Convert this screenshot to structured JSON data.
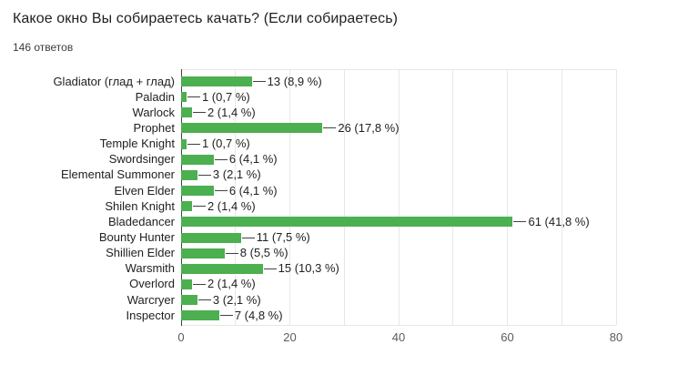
{
  "header": {
    "title": "Какое окно Вы собираетесь качать? (Если собираетесь)",
    "responses": "146 ответов"
  },
  "chart_data": {
    "type": "bar",
    "orientation": "horizontal",
    "title": "Какое окно Вы собираетесь качать? (Если собираетесь)",
    "responses_total": 146,
    "categories": [
      "Gladiator (глад + глад)",
      "Paladin",
      "Warlock",
      "Prophet",
      "Temple Knight",
      "Swordsinger",
      "Elemental Summoner",
      "Elven Elder",
      "Shilen Knight",
      "Bladedancer",
      "Bounty Hunter",
      "Shillien Elder",
      "Warsmith",
      "Overlord",
      "Warcryer",
      "Inspector"
    ],
    "values": [
      13,
      1,
      2,
      26,
      1,
      6,
      3,
      6,
      2,
      61,
      11,
      8,
      15,
      2,
      3,
      7
    ],
    "percents": [
      8.9,
      0.7,
      1.4,
      17.8,
      0.7,
      4.1,
      2.1,
      4.1,
      1.4,
      41.8,
      7.5,
      5.5,
      10.3,
      1.4,
      2.1,
      4.8
    ],
    "display_labels": [
      "13 (8,9 %)",
      "1 (0,7 %)",
      "2 (1,4 %)",
      "26 (17,8 %)",
      "1 (0,7 %)",
      "6 (4,1 %)",
      "3 (2,1 %)",
      "6 (4,1 %)",
      "2 (1,4 %)",
      "61 (41,8 %)",
      "11 (7,5 %)",
      "8 (5,5 %)",
      "15 (10,3 %)",
      "2 (1,4 %)",
      "3 (2,1 %)",
      "7 (4,8 %)"
    ],
    "xlabel": "",
    "ylabel": "",
    "xlim": [
      0,
      80
    ],
    "x_ticks": [
      0,
      20,
      40,
      60,
      80
    ],
    "x_tick_labels": [
      "0",
      "20",
      "40",
      "60",
      "80"
    ],
    "grid_step": 10,
    "grid_on": true,
    "legend": "none",
    "bar_color": "#4caf50",
    "grid_color": "#e7e7e7",
    "axis_color": "#424242",
    "text_color": "#212121",
    "tick_text_color": "#5c5c5c"
  }
}
